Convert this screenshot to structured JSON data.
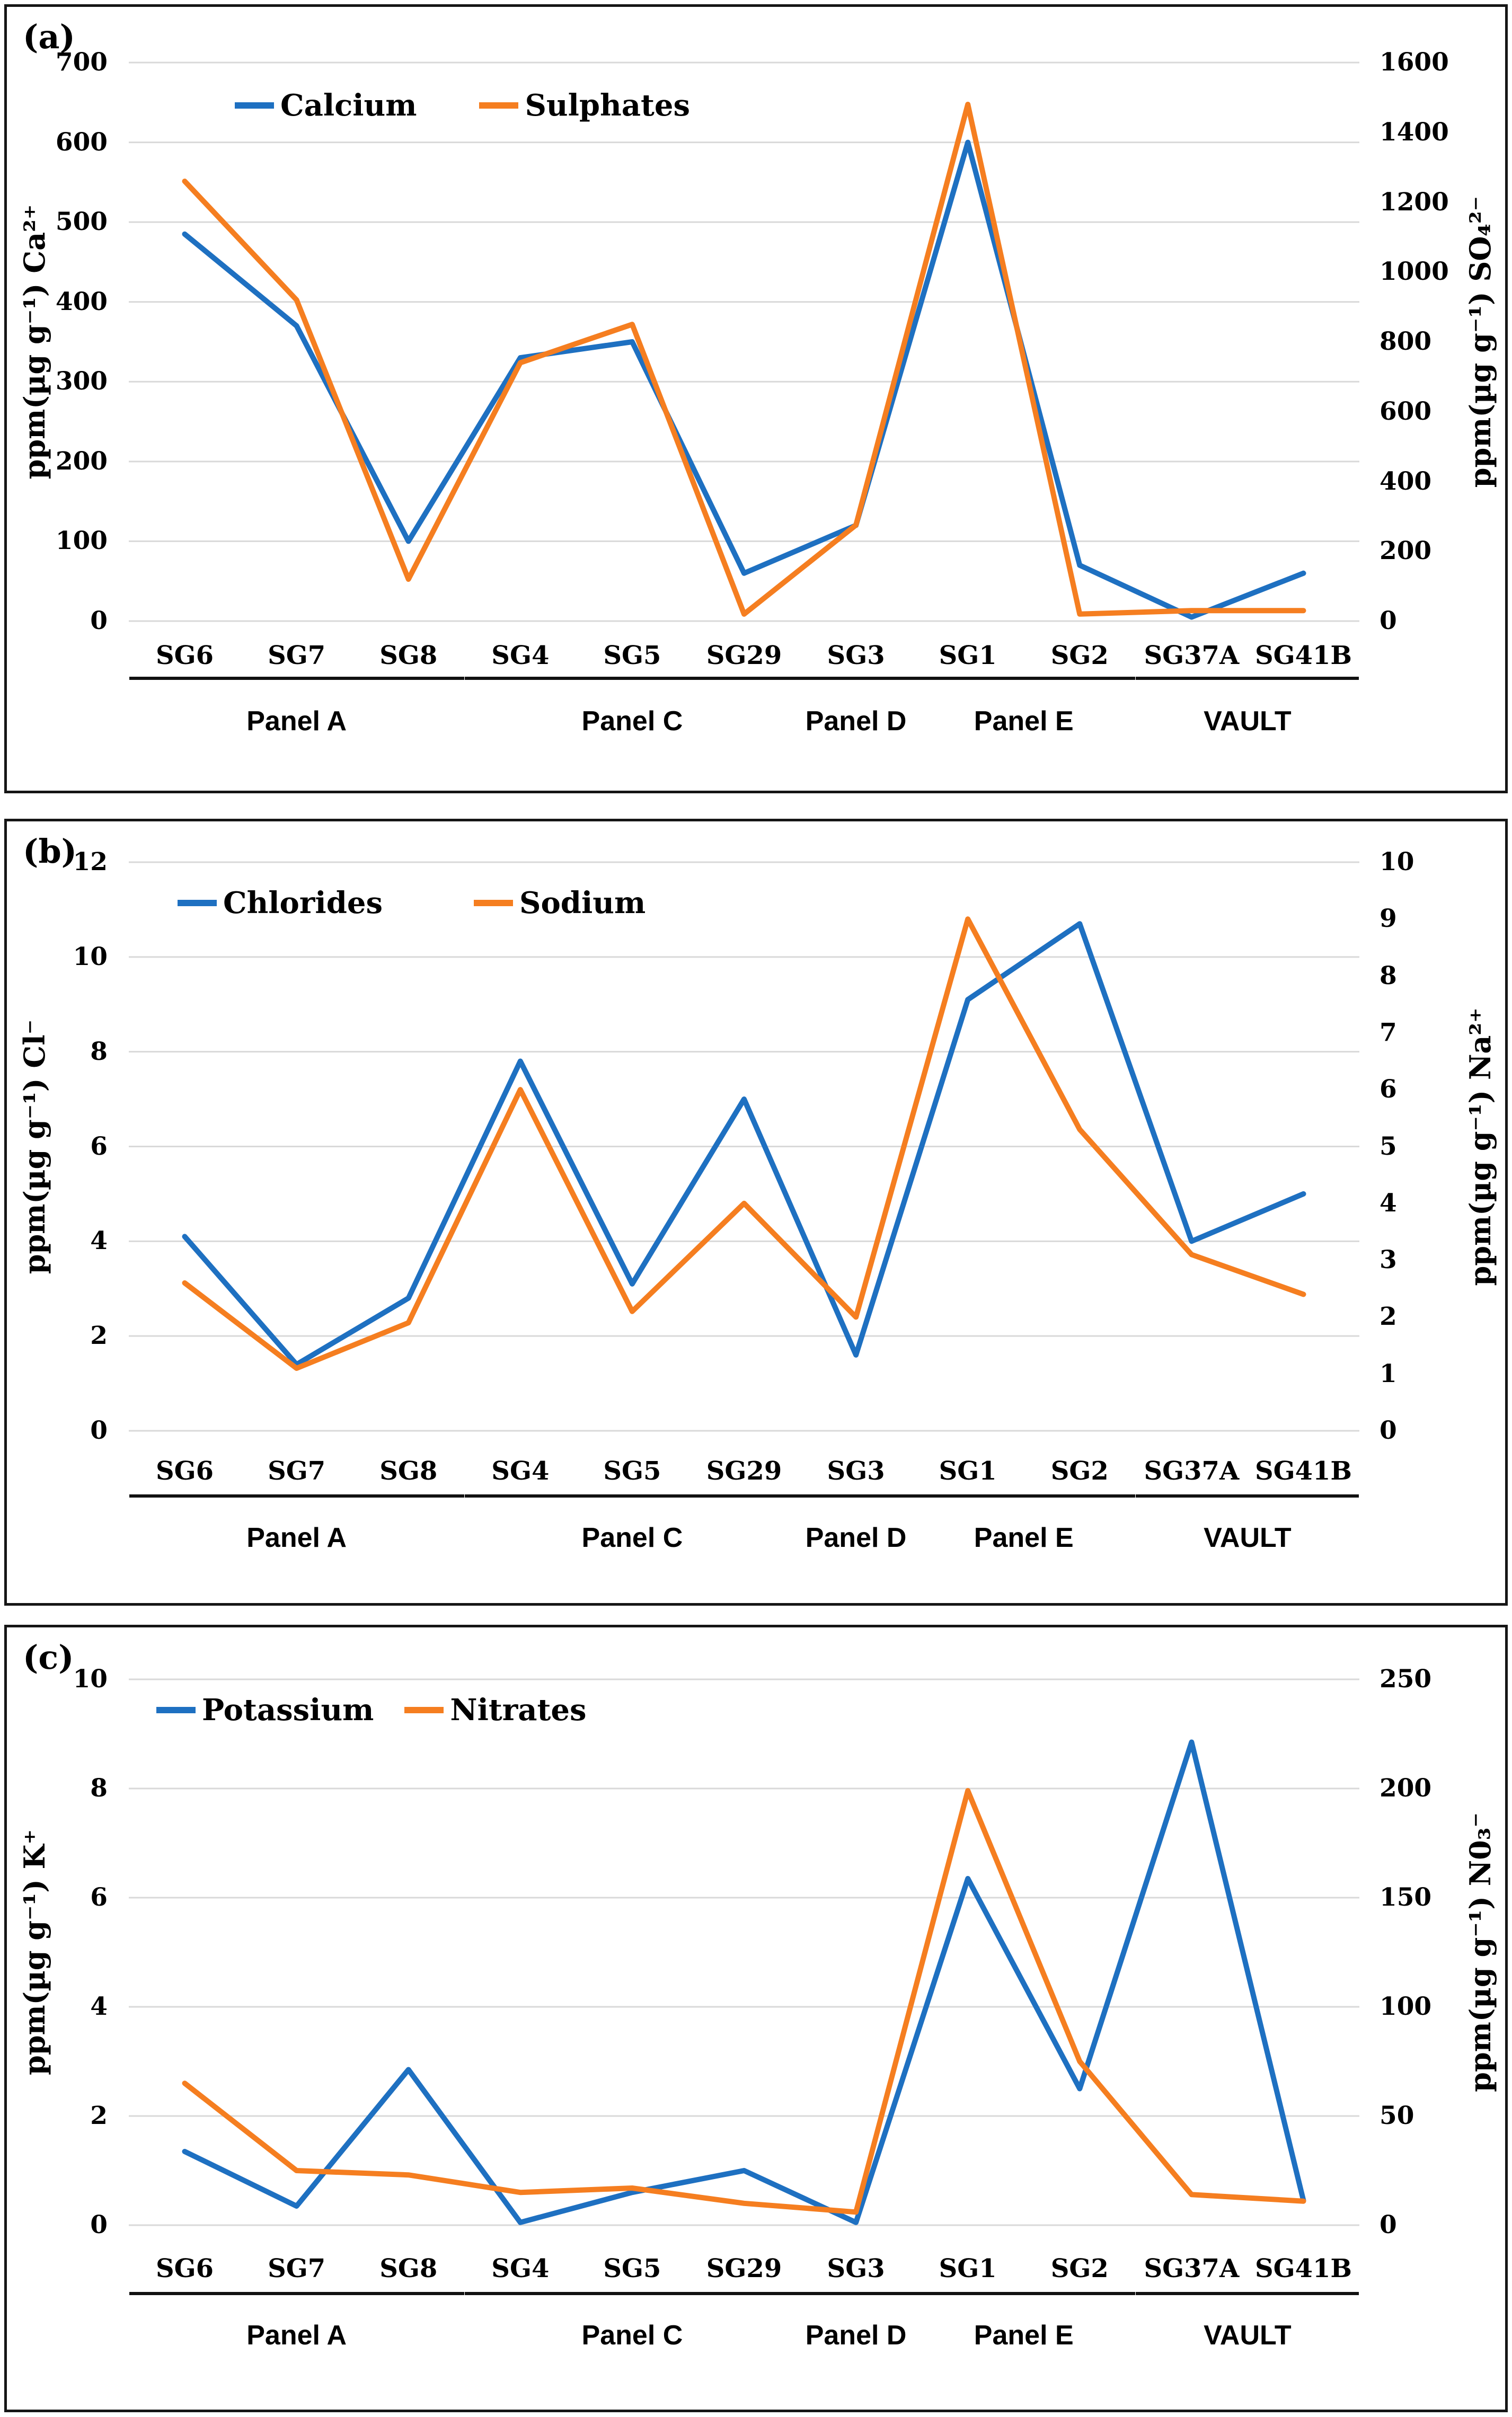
{
  "page": {
    "background": "#ffffff"
  },
  "colors": {
    "series_blue": "#1E70C1",
    "series_orange": "#F57E20",
    "gridline": "#D9D9D9",
    "text": "#000000",
    "border": "#161616"
  },
  "chart_data": [
    {
      "type": "line",
      "panel_letter": "(a)",
      "categories": [
        "SG6",
        "SG7",
        "SG8",
        "SG4",
        "SG5",
        "SG29",
        "SG3",
        "SG1",
        "SG2",
        "SG37A",
        "SG41B"
      ],
      "groups": [
        {
          "label": "Panel A",
          "from": 0,
          "to": 2
        },
        {
          "label": "Panel C",
          "from": 3,
          "to": 5
        },
        {
          "label": "Panel D",
          "from": 6,
          "to": 6
        },
        {
          "label": "Panel E",
          "from": 7,
          "to": 8
        },
        {
          "label": "VAULT",
          "from": 9,
          "to": 10
        }
      ],
      "left_axis": {
        "title": "ppm(µg g⁻¹) Ca²⁺",
        "min": 0,
        "max": 700,
        "tick_labels": [
          "700",
          "600",
          "500",
          "400",
          "300",
          "200",
          "100",
          "0"
        ]
      },
      "right_axis": {
        "title": "ppm(µg g⁻¹) SO₄²⁻",
        "min": 0,
        "max": 1600,
        "tick_labels": [
          "1600",
          "1400",
          "1200",
          "1000",
          "800",
          "600",
          "400",
          "200",
          "0"
        ]
      },
      "grid": "horizontal",
      "legend_position": "top-left-inside",
      "series": [
        {
          "name": "Calcium",
          "axis": "left",
          "color": "#1E70C1",
          "values": [
            485,
            370,
            100,
            330,
            350,
            60,
            120,
            600,
            70,
            5,
            60
          ]
        },
        {
          "name": "Sulphates",
          "axis": "right",
          "color": "#F57E20",
          "values": [
            1260,
            920,
            120,
            740,
            850,
            20,
            275,
            1480,
            20,
            30,
            30
          ]
        }
      ]
    },
    {
      "type": "line",
      "panel_letter": "(b)",
      "categories": [
        "SG6",
        "SG7",
        "SG8",
        "SG4",
        "SG5",
        "SG29",
        "SG3",
        "SG1",
        "SG2",
        "SG37A",
        "SG41B"
      ],
      "groups": [
        {
          "label": "Panel A",
          "from": 0,
          "to": 2
        },
        {
          "label": "Panel C",
          "from": 3,
          "to": 5
        },
        {
          "label": "Panel D",
          "from": 6,
          "to": 6
        },
        {
          "label": "Panel E",
          "from": 7,
          "to": 8
        },
        {
          "label": "VAULT",
          "from": 9,
          "to": 10
        }
      ],
      "left_axis": {
        "title": "ppm(µg g⁻¹) Cl⁻",
        "min": 0,
        "max": 12,
        "tick_labels": [
          "12",
          "10",
          "8",
          "6",
          "4",
          "2",
          "0"
        ]
      },
      "right_axis": {
        "title": "ppm(µg g⁻¹) Na²⁺",
        "min": 0,
        "max": 10,
        "tick_labels": [
          "10",
          "9",
          "8",
          "7",
          "6",
          "5",
          "4",
          "3",
          "2",
          "1",
          "0"
        ]
      },
      "grid": "horizontal",
      "legend_position": "top-left-inside",
      "series": [
        {
          "name": "Chlorides",
          "axis": "left",
          "color": "#1E70C1",
          "values": [
            4.1,
            1.4,
            2.8,
            7.8,
            3.1,
            7.0,
            1.6,
            9.1,
            10.7,
            4.0,
            5.0
          ]
        },
        {
          "name": "Sodium",
          "axis": "right",
          "color": "#F57E20",
          "values": [
            2.6,
            1.1,
            1.9,
            6.0,
            2.1,
            4.0,
            2.0,
            9.0,
            5.3,
            3.1,
            2.4
          ]
        }
      ]
    },
    {
      "type": "line",
      "panel_letter": "(c)",
      "categories": [
        "SG6",
        "SG7",
        "SG8",
        "SG4",
        "SG5",
        "SG29",
        "SG3",
        "SG1",
        "SG2",
        "SG37A",
        "SG41B"
      ],
      "groups": [
        {
          "label": "Panel A",
          "from": 0,
          "to": 2
        },
        {
          "label": "Panel C",
          "from": 3,
          "to": 5
        },
        {
          "label": "Panel D",
          "from": 6,
          "to": 6
        },
        {
          "label": "Panel E",
          "from": 7,
          "to": 8
        },
        {
          "label": "VAULT",
          "from": 9,
          "to": 10
        }
      ],
      "left_axis": {
        "title": "ppm(µg g⁻¹) K⁺",
        "min": 0,
        "max": 10,
        "tick_labels": [
          "10",
          "8",
          "6",
          "4",
          "2",
          "0"
        ]
      },
      "right_axis": {
        "title": "ppm(µg g⁻¹) N0₃⁻",
        "min": 0,
        "max": 250,
        "tick_labels": [
          "250",
          "200",
          "150",
          "100",
          "50",
          "0"
        ]
      },
      "grid": "horizontal",
      "legend_position": "top-left-inside",
      "series": [
        {
          "name": "Potassium",
          "axis": "left",
          "color": "#1E70C1",
          "values": [
            1.35,
            0.35,
            2.85,
            0.05,
            0.6,
            1.0,
            0.05,
            6.35,
            2.5,
            8.85,
            0.45
          ]
        },
        {
          "name": "Nitrates",
          "axis": "right",
          "color": "#F57E20",
          "values": [
            65,
            25,
            23,
            15,
            17,
            10,
            6,
            199,
            75,
            14,
            11
          ]
        }
      ]
    }
  ]
}
